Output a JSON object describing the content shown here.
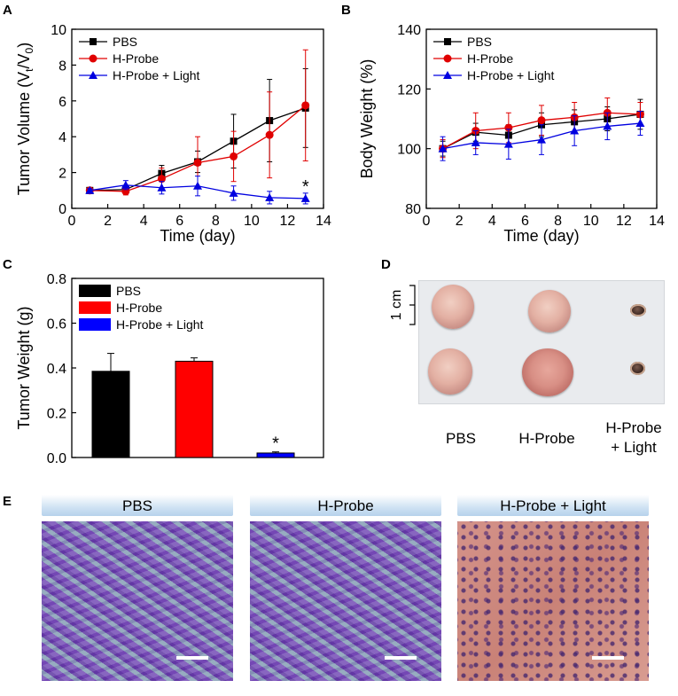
{
  "panel_letters": {
    "a": "A",
    "b": "B",
    "c": "C",
    "d": "D",
    "e": "E"
  },
  "chart_data": [
    {
      "id": "A",
      "type": "line",
      "ylabel_parts": {
        "base": "Tumor Volume (V",
        "sub1": "t",
        "mid": "/V",
        "sub2": "0",
        "end": ")"
      },
      "xlabel": "Time (day)",
      "xlim": [
        0,
        14
      ],
      "ylim": [
        0,
        10
      ],
      "xticks": [
        0,
        2,
        4,
        6,
        8,
        10,
        12,
        14
      ],
      "yticks": [
        0,
        2,
        4,
        6,
        8,
        10
      ],
      "legend_position": "top-left",
      "x": [
        1,
        3,
        5,
        7,
        9,
        11,
        13
      ],
      "series": [
        {
          "name": "PBS",
          "color": "#000000",
          "marker": "square",
          "values": [
            1.0,
            1.05,
            1.95,
            2.6,
            3.75,
            4.9,
            5.6
          ],
          "errors": [
            0.1,
            0.15,
            0.45,
            0.6,
            1.5,
            2.3,
            2.2
          ]
        },
        {
          "name": "H-Probe",
          "color": "#e00000",
          "marker": "circle",
          "values": [
            1.0,
            0.95,
            1.65,
            2.55,
            2.9,
            4.1,
            5.75
          ],
          "errors": [
            0.12,
            0.2,
            0.6,
            1.45,
            1.4,
            2.4,
            3.1
          ]
        },
        {
          "name": "H-Probe + Light",
          "color": "#0000e0",
          "marker": "triangle",
          "values": [
            1.0,
            1.3,
            1.15,
            1.25,
            0.85,
            0.6,
            0.55
          ],
          "errors": [
            0.1,
            0.25,
            0.35,
            0.55,
            0.4,
            0.35,
            0.3
          ]
        }
      ],
      "annotations": [
        {
          "text": "*",
          "x": 13,
          "y": 1.1
        }
      ]
    },
    {
      "id": "B",
      "type": "line",
      "ylabel": "Body Weight (%)",
      "xlabel": "Time (day)",
      "xlim": [
        0,
        14
      ],
      "ylim": [
        80,
        140
      ],
      "xticks": [
        0,
        2,
        4,
        6,
        8,
        10,
        12,
        14
      ],
      "yticks": [
        80,
        100,
        120,
        140
      ],
      "legend_position": "top-left",
      "x": [
        1,
        3,
        5,
        7,
        9,
        11,
        13
      ],
      "series": [
        {
          "name": "PBS",
          "color": "#000000",
          "marker": "square",
          "values": [
            100,
            105.5,
            104.5,
            108,
            109,
            110,
            111.5
          ],
          "errors": [
            2.5,
            3,
            3.5,
            4,
            4,
            4,
            5
          ]
        },
        {
          "name": "H-Probe",
          "color": "#e00000",
          "marker": "circle",
          "values": [
            100,
            106,
            107,
            109.5,
            110.5,
            112,
            111.5
          ],
          "errors": [
            3,
            6,
            5,
            5,
            5,
            5,
            4
          ]
        },
        {
          "name": "H-Probe + Light",
          "color": "#0000e0",
          "marker": "triangle",
          "values": [
            100,
            102,
            101.5,
            103,
            106,
            107.5,
            108.5
          ],
          "errors": [
            4,
            4,
            5,
            5,
            5,
            4.5,
            4
          ]
        }
      ]
    },
    {
      "id": "C",
      "type": "bar",
      "ylabel": "Tumor Weight (g)",
      "ylim": [
        0,
        0.8
      ],
      "yticks": [
        "0.0",
        "0.2",
        "0.4",
        "0.6",
        "0.8"
      ],
      "legend_position": "top-left",
      "categories": [
        "PBS",
        "H-Probe",
        "H-Probe + Light"
      ],
      "values": [
        0.385,
        0.43,
        0.02
      ],
      "errors": [
        0.08,
        0.015,
        0.005
      ],
      "colors": [
        "#000000",
        "#ff0000",
        "#0000ff"
      ],
      "annotations": [
        {
          "text": "*",
          "category": "H-Probe + Light"
        }
      ]
    }
  ],
  "panel_d": {
    "scale_label": "1 cm",
    "captions": [
      "PBS",
      "H-Probe",
      "H-Probe\n+ Light"
    ],
    "caption_line1": [
      "PBS",
      "H-Probe",
      "H-Probe"
    ],
    "caption_line2": [
      "",
      "",
      "+ Light"
    ]
  },
  "panel_e": {
    "titles": [
      "PBS",
      "H-Probe",
      "H-Probe + Light"
    ]
  }
}
